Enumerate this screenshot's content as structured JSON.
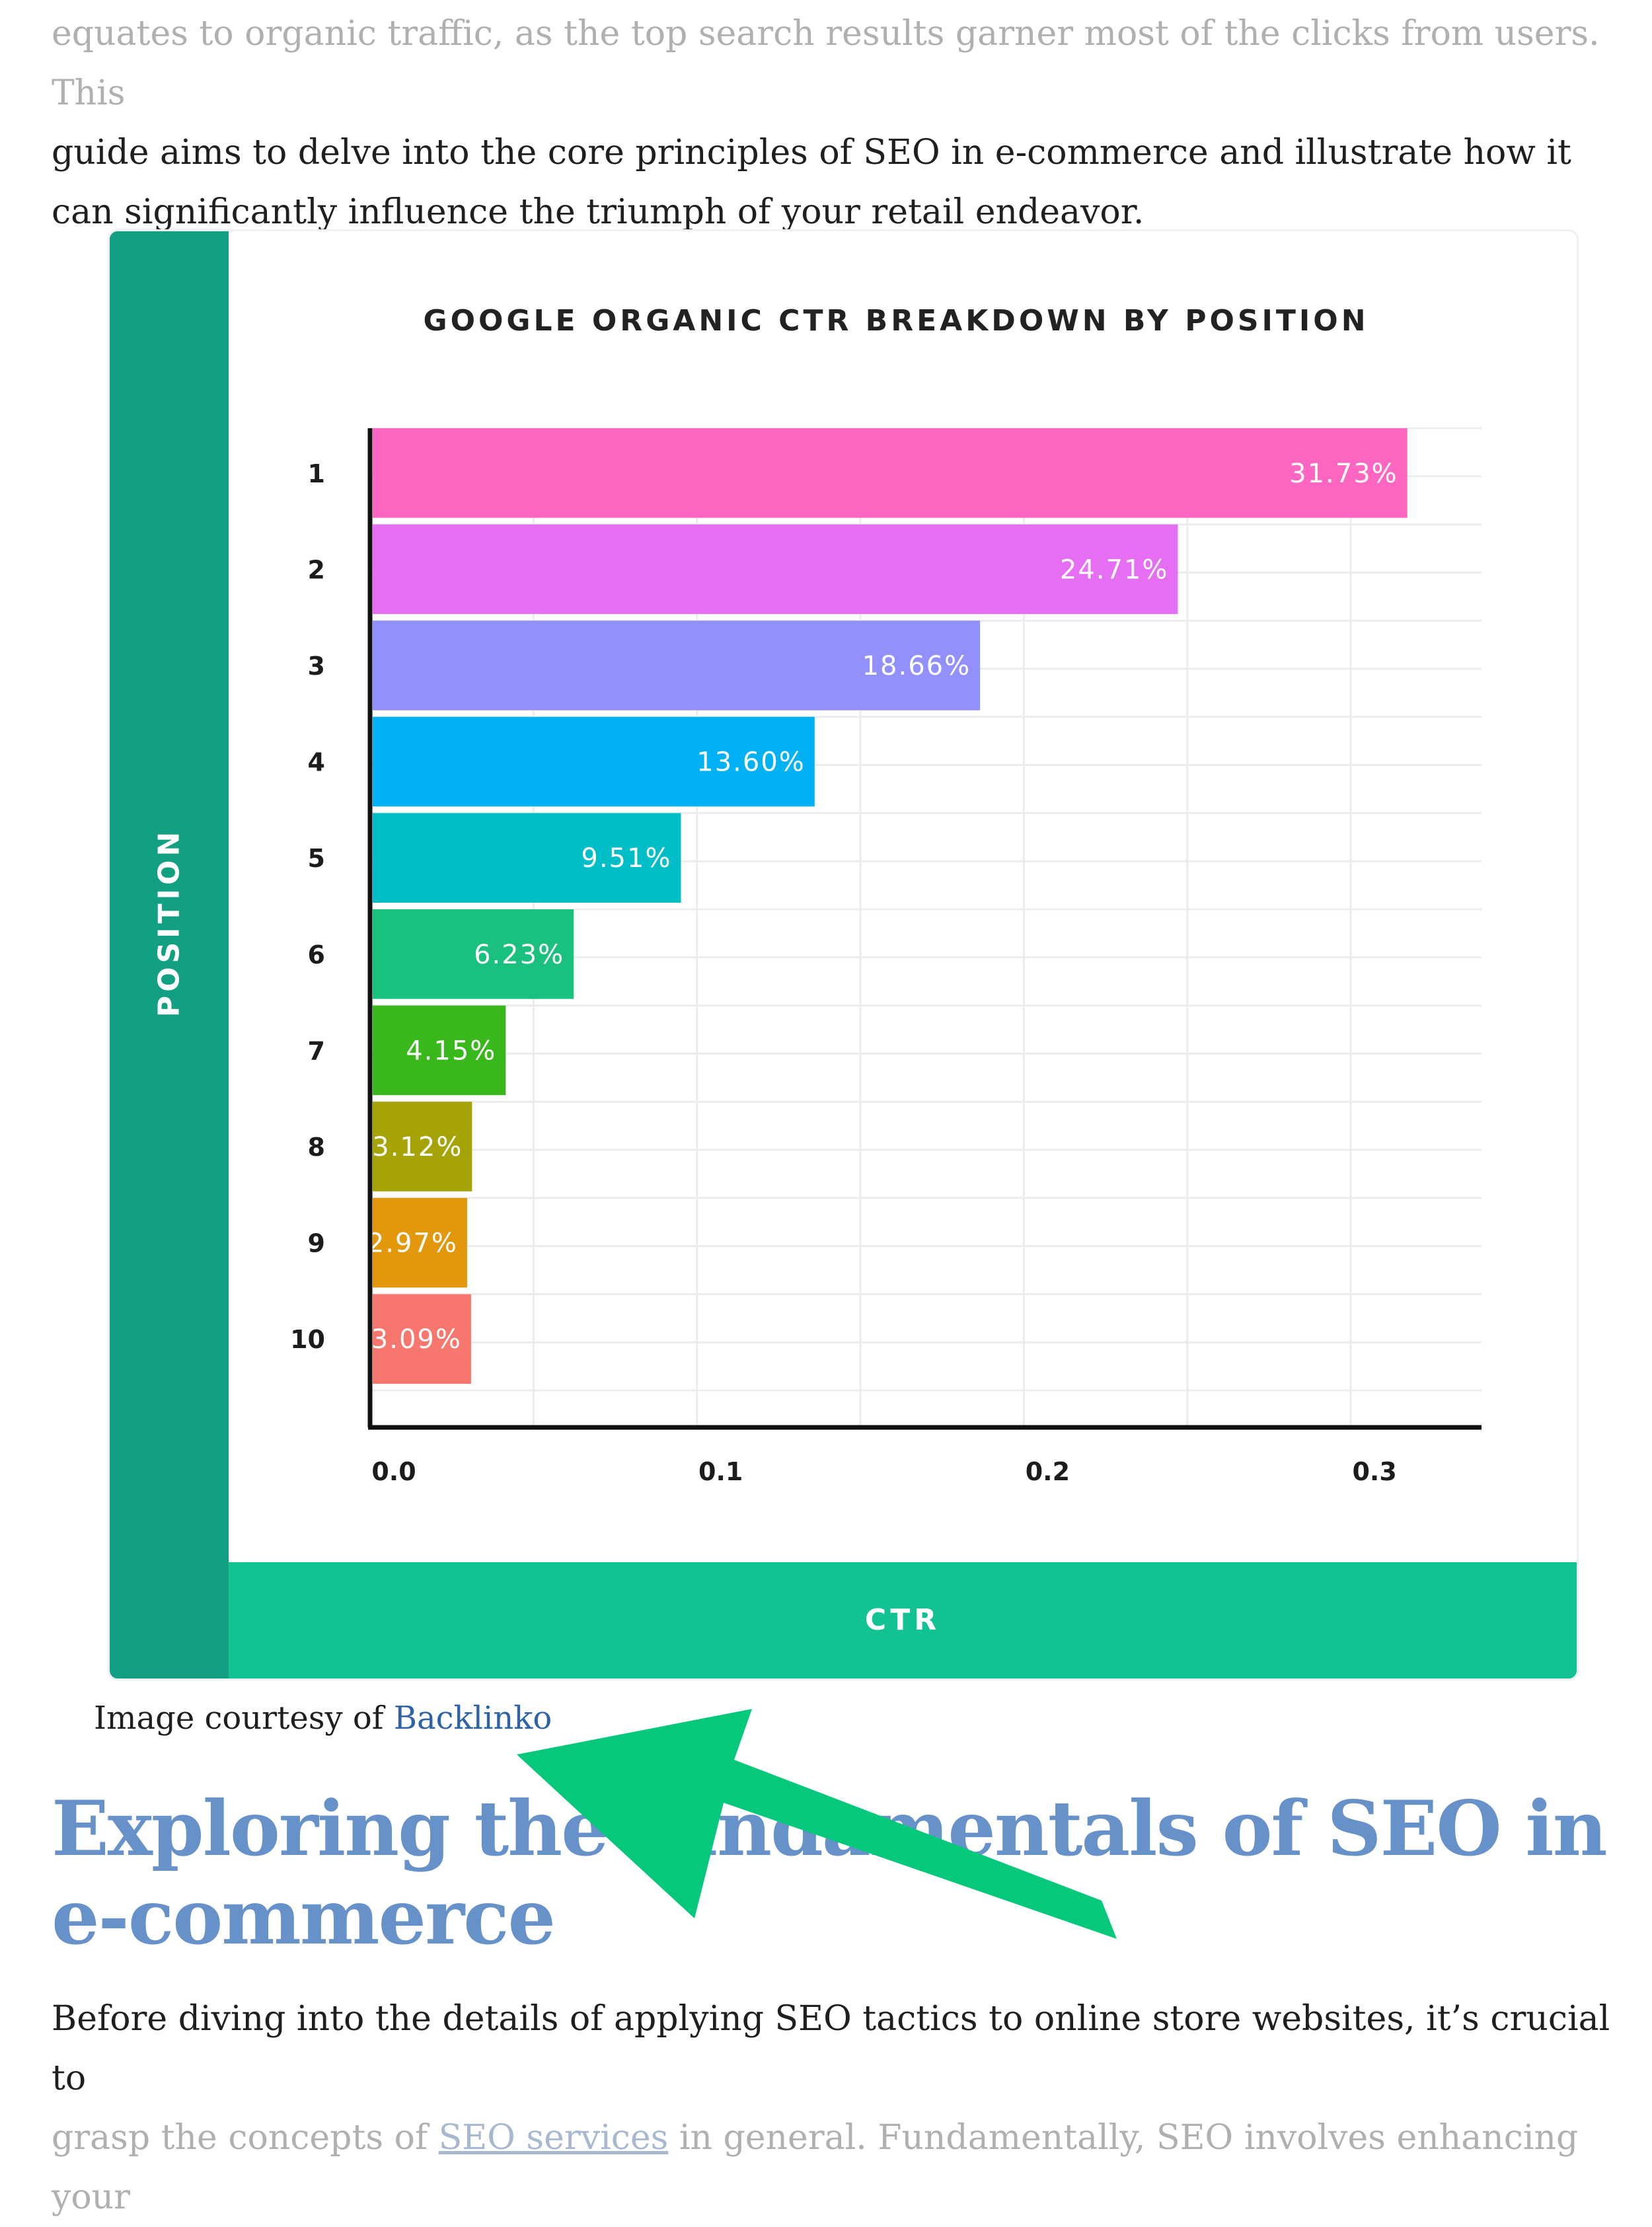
{
  "article": {
    "intro_line_1": "equates to organic traffic, as the top search results garner most of the clicks from users. This",
    "intro_lines_2_3": "guide aims to delve into the core principles of SEO in e-commerce and illustrate how it can significantly influence the triumph of your retail endeavor.",
    "caption_prefix": "Image courtesy of ",
    "caption_link": "Backlinko",
    "heading": "Exploring the fundamentals of SEO in e-commerce",
    "body_line_1": "Before diving into the details of applying SEO tactics to online store websites, it’s crucial to",
    "body_line_2_before_link": "grasp the concepts of ",
    "body_line_2_link": "SEO services",
    "body_line_2_after_link": " in general. Fundamentally, SEO involves enhancing your"
  },
  "chart_data": {
    "type": "bar",
    "orientation": "horizontal",
    "title": "GOOGLE ORGANIC CTR BREAKDOWN BY POSITION",
    "xlabel": "CTR",
    "ylabel": "POSITION",
    "categories": [
      "1",
      "2",
      "3",
      "4",
      "5",
      "6",
      "7",
      "8",
      "9",
      "10"
    ],
    "values": [
      0.3173,
      0.2471,
      0.1866,
      0.136,
      0.0951,
      0.0623,
      0.0415,
      0.0312,
      0.0297,
      0.0309
    ],
    "data_labels": [
      "31.73%",
      "24.71%",
      "18.66%",
      "13.60%",
      "9.51%",
      "6.23%",
      "4.15%",
      "3.12%",
      "2.97%",
      "3.09%"
    ],
    "colors": [
      "#ff66c2",
      "#e66ef2",
      "#9190fc",
      "#00b2f4",
      "#00bec8",
      "#19c07e",
      "#38b81a",
      "#a5a305",
      "#e3980c",
      "#f7776f"
    ],
    "xticks": [
      "0.0",
      "0.1",
      "0.2",
      "0.3"
    ],
    "xlim": [
      0,
      0.34
    ],
    "grid": true,
    "legend": "none"
  },
  "colors": {
    "sidebar": "#12a083",
    "bottom_bar": "#13c293",
    "heading": "#6791c9",
    "link": "#2e63a8",
    "arrow": "#06c87a"
  },
  "icons": {
    "annotation": "green-arrow-icon"
  }
}
